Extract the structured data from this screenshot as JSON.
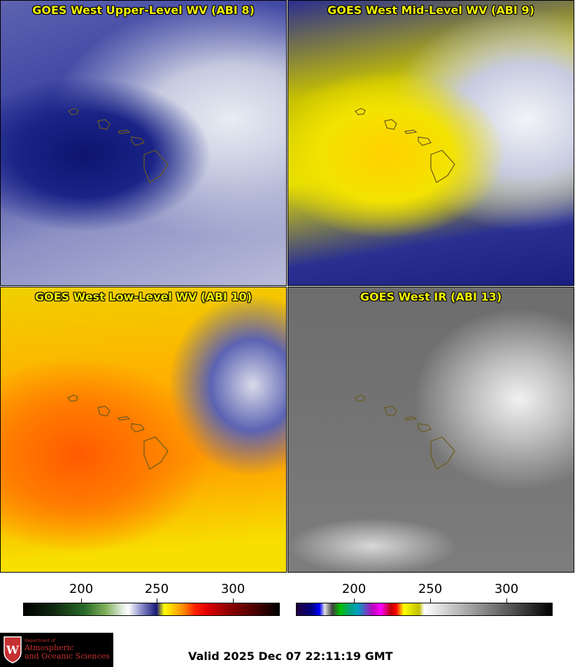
{
  "panels": [
    {
      "title": "GOES West Upper-Level WV (ABI 8)"
    },
    {
      "title": "GOES West Mid-Level WV (ABI 9)"
    },
    {
      "title": "GOES West Low-Level WV (ABI 10)"
    },
    {
      "title": "GOES West IR (ABI 13)"
    }
  ],
  "colorbars": [
    {
      "ticks": [
        "200",
        "250",
        "300"
      ]
    },
    {
      "ticks": [
        "200",
        "250",
        "300"
      ]
    }
  ],
  "logo": {
    "line1": "Department of",
    "line2": "Atmospheric",
    "line3": "and Oceanic Sciences",
    "shield_letter": "W"
  },
  "valid_time": "Valid 2025 Dec 07 22:11:19 GMT",
  "colors": {
    "title_yellow": "#f2f200",
    "logo_red": "#c53030"
  }
}
